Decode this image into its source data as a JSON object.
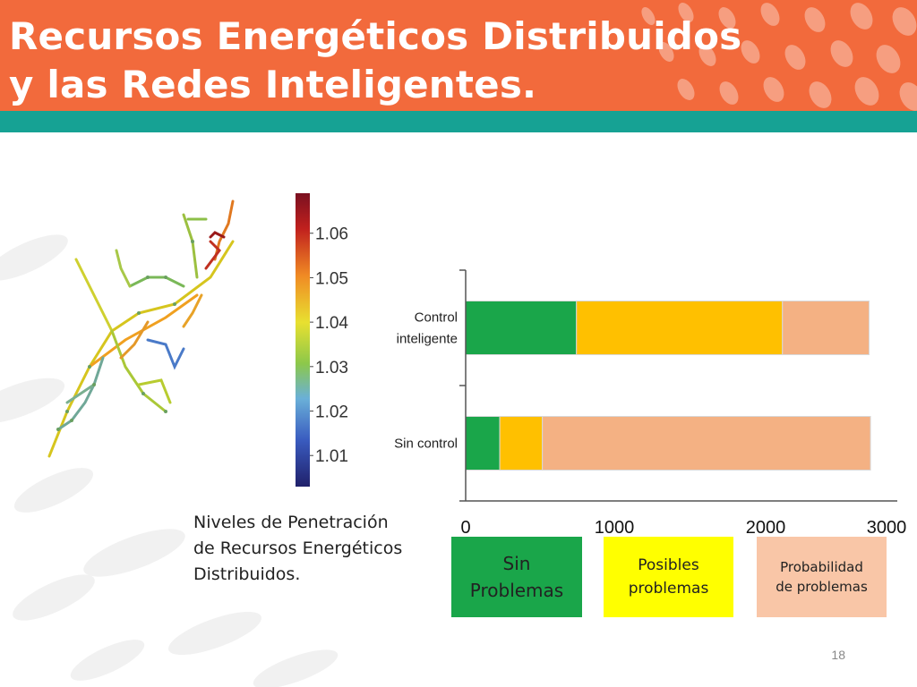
{
  "slide": {
    "title_line1": "Recursos Energéticos Distribuidos",
    "title_line2": "y las Redes Inteligentes.",
    "caption_lines": [
      "Niveles de Penetración",
      "de Recursos Energéticos",
      "Distribuidos."
    ],
    "page_number": "18"
  },
  "colors": {
    "header": "#f26a3c",
    "teal": "#16a294",
    "green": "#1aa64a",
    "amber": "#ffc000",
    "peach": "#f4b183",
    "yellow": "#ffff00",
    "light_peach": "#f9c6a7"
  },
  "colorbar": {
    "ticks": [
      "1.06",
      "1.05",
      "1.04",
      "1.03",
      "1.02",
      "1.01"
    ],
    "tick_values": [
      1.06,
      1.05,
      1.04,
      1.03,
      1.02,
      1.01
    ],
    "range": [
      1.003,
      1.069
    ]
  },
  "legend": {
    "sin_problemas": [
      "Sin",
      "Problemas"
    ],
    "posibles": [
      "Posibles",
      "problemas"
    ],
    "probabilidad": [
      "Probabilidad",
      "de problemas"
    ]
  },
  "chart_data": {
    "type": "bar",
    "orientation": "horizontal",
    "stacked": true,
    "categories": [
      "Control inteligente",
      "Sin control"
    ],
    "category_label_lines": [
      [
        "Control",
        "inteligente"
      ],
      [
        "Sin control"
      ]
    ],
    "series": [
      {
        "name": "Sin Problemas",
        "color": "#1aa64a",
        "values": [
          780,
          240
        ]
      },
      {
        "name": "Posibles problemas",
        "color": "#ffc000",
        "values": [
          1450,
          300
        ]
      },
      {
        "name": "Probabilidad de problemas",
        "color": "#f4b183",
        "values": [
          610,
          2310
        ]
      }
    ],
    "xlim": [
      0,
      2900
    ],
    "x_ticks": [
      0,
      1000,
      2000,
      3000
    ],
    "x_tick_labels": [
      "0",
      "1000",
      "2000",
      "3000"
    ],
    "grid": false,
    "legend_placement": "bottom"
  }
}
